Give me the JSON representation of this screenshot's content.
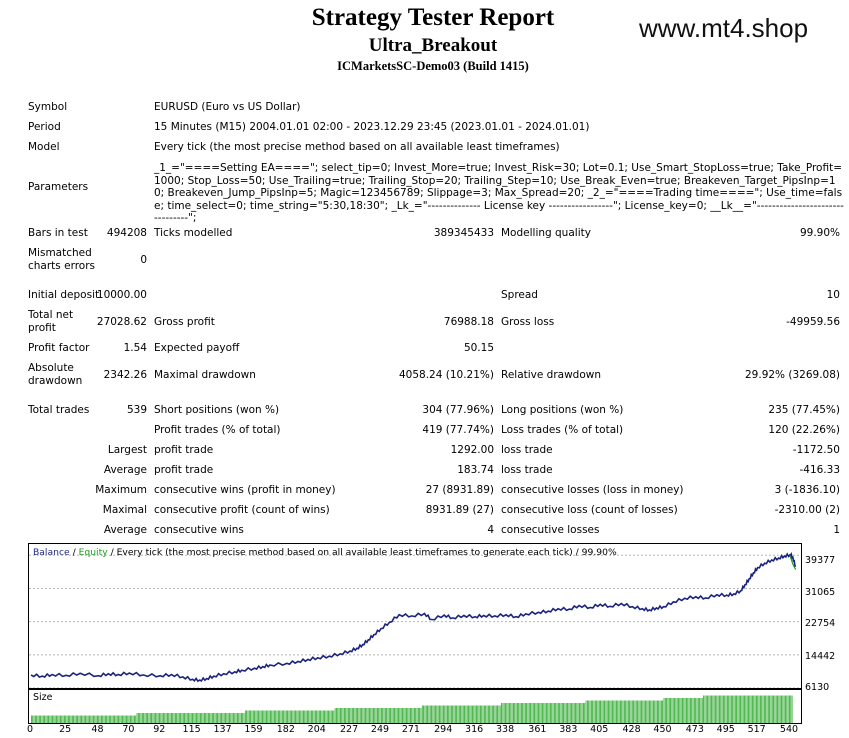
{
  "header": {
    "title": "Strategy Tester Report",
    "ea_name": "Ultra_Breakout",
    "broker": "ICMarketsSC-Demo03 (Build 1415)",
    "website": "www.mt4.shop"
  },
  "info": {
    "symbol_label": "Symbol",
    "symbol_value": "EURUSD (Euro vs US Dollar)",
    "period_label": "Period",
    "period_value": "15 Minutes (M15) 2004.01.01 02:00 - 2023.12.29 23:45 (2023.01.01 - 2024.01.01)",
    "model_label": "Model",
    "model_value": "Every tick (the most precise method based on all available least timeframes)",
    "parameters_label": "Parameters",
    "parameters_value": "_1_=\"====Setting EA====\"; select_tip=0; Invest_More=true; Invest_Risk=30; Lot=0.1; Use_Smart_StopLoss=true; Take_Profit=1000; Stop_Loss=50; Use_Trailing=true; Trailing_Stop=20; Trailing_Step=10; Use_Break_Even=true; Breakeven_Target_PipsInp=10; Breakeven_Jump_PipsInp=5; Magic=123456789; Slippage=3; Max_Spread=20; _2_=\"====Trading time====\"; Use_time=false; time_select=0; time_string=\"5:30,18:30\"; _Lk_=\"-------------- License key -----------------\"; License_key=0; __Lk__=\"--------------------------------\";"
  },
  "stats": {
    "bars_label": "Bars in test",
    "bars_value": "494208",
    "ticks_label": "Ticks modelled",
    "ticks_value": "389345433",
    "quality_label": "Modelling quality",
    "quality_value": "99.90%",
    "mismatch_label_1": "Mismatched",
    "mismatch_label_2": "charts errors",
    "mismatch_value": "0",
    "deposit_label": "Initial deposit",
    "deposit_value": "10000.00",
    "spread_label": "Spread",
    "spread_value": "10",
    "net_label_1": "Total net",
    "net_label_2": "profit",
    "net_value": "27028.62",
    "gross_profit_label": "Gross profit",
    "gross_profit_value": "76988.18",
    "gross_loss_label": "Gross loss",
    "gross_loss_value": "-49959.56",
    "pf_label": "Profit factor",
    "pf_value": "1.54",
    "ep_label": "Expected payoff",
    "ep_value": "50.15",
    "abs_dd_label_1": "Absolute",
    "abs_dd_label_2": "drawdown",
    "abs_dd_value": "2342.26",
    "max_dd_label": "Maximal drawdown",
    "max_dd_value": "4058.24 (10.21%)",
    "rel_dd_label": "Relative drawdown",
    "rel_dd_value": "29.92% (3269.08)",
    "trades_label": "Total trades",
    "trades_value": "539",
    "short_label": "Short positions (won %)",
    "short_value": "304 (77.96%)",
    "long_label": "Long positions (won %)",
    "long_value": "235 (77.45%)",
    "profit_trades_label": "Profit trades (% of total)",
    "profit_trades_value": "419 (77.74%)",
    "loss_trades_label": "Loss trades (% of total)",
    "loss_trades_value": "120 (22.26%)",
    "largest_label": "Largest",
    "largest_profit_label": "profit trade",
    "largest_profit_value": "1292.00",
    "largest_loss_label": "loss trade",
    "largest_loss_value": "-1172.50",
    "average_label": "Average",
    "average_profit_label": "profit trade",
    "average_profit_value": "183.74",
    "average_loss_label": "loss trade",
    "average_loss_value": "-416.33",
    "maximum_label": "Maximum",
    "max_cw_label": "consecutive wins (profit in money)",
    "max_cw_value": "27 (8931.89)",
    "max_cl_label": "consecutive losses (loss in money)",
    "max_cl_value": "3 (-1836.10)",
    "maximal_label": "Maximal",
    "maximal_cp_label": "consecutive profit (count of wins)",
    "maximal_cp_value": "8931.89 (27)",
    "maximal_cl_label": "consecutive loss (count of losses)",
    "maximal_cl_value": "-2310.00 (2)",
    "average2_label": "Average",
    "avg_cw_label": "consecutive wins",
    "avg_cw_value": "4",
    "avg_cl_label": "consecutive losses",
    "avg_cl_value": "1"
  },
  "chart_data": {
    "type": "line",
    "legend": {
      "balance": "Balance",
      "sep": " / ",
      "equity": "Equity",
      "rest": " / Every tick (the most precise method based on all available least timeframes to generate each tick) / 99.90%"
    },
    "x_ticks": [
      0,
      25,
      48,
      70,
      92,
      115,
      137,
      159,
      182,
      204,
      227,
      249,
      271,
      294,
      316,
      338,
      361,
      383,
      405,
      428,
      450,
      473,
      495,
      517,
      540
    ],
    "y_ticks": [
      39377,
      31065,
      22754,
      14442,
      6130
    ],
    "xlim": [
      0,
      545
    ],
    "ylim": [
      6130,
      41200
    ],
    "series": [
      {
        "name": "Balance",
        "x": [
          0,
          8,
          15,
          25,
          35,
          48,
          55,
          62,
          70,
          80,
          92,
          100,
          108,
          115,
          120,
          125,
          130,
          137,
          145,
          150,
          159,
          165,
          170,
          182,
          190,
          197,
          204,
          212,
          220,
          227,
          232,
          236,
          240,
          244,
          249,
          255,
          262,
          271,
          280,
          285,
          294,
          300,
          308,
          316,
          322,
          330,
          338,
          345,
          352,
          361,
          368,
          375,
          383,
          390,
          398,
          405,
          412,
          420,
          428,
          435,
          440,
          445,
          450,
          457,
          465,
          473,
          480,
          488,
          495,
          500,
          505,
          508,
          511,
          514,
          517,
          522,
          527,
          532,
          536,
          540,
          542,
          544
        ],
        "values": [
          9400,
          9100,
          9500,
          9300,
          9800,
          9200,
          9700,
          9500,
          9900,
          9400,
          9200,
          9500,
          8900,
          8300,
          8100,
          8500,
          9100,
          9700,
          10200,
          10600,
          11100,
          11500,
          11900,
          12300,
          12800,
          13300,
          13700,
          14100,
          14700,
          15400,
          16100,
          17000,
          18200,
          19500,
          21000,
          22600,
          24500,
          24200,
          24800,
          23300,
          24400,
          23700,
          24300,
          24000,
          24300,
          24200,
          24500,
          24000,
          24700,
          25100,
          25400,
          26000,
          25900,
          26800,
          26300,
          27100,
          26600,
          27300,
          26500,
          26000,
          25700,
          26200,
          26500,
          27700,
          28600,
          29000,
          28700,
          29500,
          29400,
          29700,
          30500,
          32000,
          33500,
          35000,
          36300,
          37400,
          38200,
          38700,
          39200,
          39500,
          38900,
          36500
        ]
      },
      {
        "name": "Equity",
        "x": [
          540,
          542,
          544
        ],
        "values": [
          39300,
          37200,
          35800
        ]
      }
    ],
    "volume": {
      "label": "Size",
      "x_start": 2,
      "x_step": 3.35,
      "values": [
        3,
        3,
        3,
        3,
        3,
        3,
        3,
        3,
        3,
        3,
        3,
        3,
        3,
        3,
        3,
        3,
        3,
        3,
        3,
        3,
        3,
        3,
        3,
        3,
        3,
        3,
        3,
        3,
        3,
        3,
        3,
        3,
        3,
        3,
        3,
        3,
        3,
        3,
        3,
        3,
        3,
        3,
        3,
        3,
        3,
        3,
        3,
        3,
        3,
        3,
        3,
        3,
        3,
        3,
        3,
        3,
        3,
        3,
        3,
        3,
        3,
        3,
        3,
        3,
        3,
        3,
        3,
        3,
        3,
        3,
        3,
        3,
        3,
        3,
        3,
        3,
        3,
        3,
        3,
        3,
        4,
        4,
        4,
        4,
        4,
        4,
        4,
        4,
        4,
        4,
        4,
        4,
        4,
        4,
        4,
        4,
        4,
        4,
        4,
        4,
        4,
        4,
        4,
        4,
        4,
        4,
        4,
        4,
        4,
        4,
        4,
        4,
        4,
        4,
        4,
        4,
        4,
        4,
        4,
        4,
        4,
        4,
        4,
        4,
        4,
        4,
        4,
        4,
        4,
        4,
        4,
        4,
        4,
        4,
        4,
        4,
        4,
        4,
        4,
        4,
        4,
        4,
        4,
        4,
        4,
        4,
        4,
        4,
        4,
        4,
        4,
        4,
        4,
        4,
        4,
        4,
        4,
        4,
        4,
        4,
        4,
        4,
        5,
        5,
        5,
        5,
        5,
        5,
        5,
        5,
        5,
        5,
        5,
        5,
        5,
        5,
        5,
        5,
        5,
        5,
        5,
        5,
        5,
        5,
        5,
        5,
        5,
        5,
        5,
        5,
        5,
        5,
        5,
        5,
        5,
        5,
        5,
        5,
        5,
        5,
        5,
        5,
        5,
        5,
        5,
        5,
        5,
        5,
        5,
        5,
        5,
        5,
        5,
        5,
        5,
        5,
        5,
        5,
        5,
        5,
        5,
        5,
        5,
        5,
        5,
        5,
        5,
        5,
        5,
        5,
        6,
        6,
        6,
        6,
        6,
        6,
        6,
        6,
        6,
        6,
        6,
        6,
        6,
        6,
        6,
        6,
        6,
        6,
        6,
        6,
        6,
        6,
        6,
        6,
        6,
        6,
        6,
        6,
        6,
        6,
        6,
        6,
        6,
        6,
        6,
        6,
        6,
        6,
        6,
        6,
        6,
        6,
        6,
        6,
        6,
        6,
        6,
        6,
        6,
        6,
        6,
        6,
        6,
        6,
        6,
        6,
        6,
        6,
        6,
        6,
        6,
        6,
        6,
        6,
        6,
        6,
        7,
        7,
        7,
        7,
        7,
        7,
        7,
        7,
        7,
        7,
        7,
        7,
        7,
        7,
        7,
        7,
        7,
        7,
        7,
        7,
        7,
        7,
        7,
        7,
        7,
        7,
        7,
        7,
        7,
        7,
        7,
        7,
        7,
        7,
        7,
        7,
        7,
        7,
        7,
        7,
        7,
        7,
        7,
        7,
        7,
        7,
        7,
        7,
        7,
        7,
        7,
        7,
        7,
        7,
        7,
        7,
        7,
        7,
        7,
        7,
        8,
        8,
        8,
        8,
        8,
        8,
        8,
        8,
        8,
        8,
        8,
        8,
        8,
        8,
        8,
        8,
        8,
        8,
        8,
        8,
        8,
        8,
        8,
        8,
        8,
        8,
        8,
        8,
        8,
        8,
        8,
        8,
        8,
        8,
        8,
        8,
        8,
        8,
        8,
        8,
        8,
        8,
        8,
        8,
        8,
        8,
        8,
        8,
        8,
        8,
        8,
        8,
        8,
        8,
        8,
        8,
        8,
        8,
        8,
        8,
        8,
        8,
        8,
        8,
        9,
        9,
        9,
        9,
        9,
        9,
        9,
        9,
        9,
        9,
        9,
        9,
        9,
        9,
        9,
        9,
        9,
        9,
        9,
        9,
        9,
        9,
        9,
        9,
        9,
        9,
        9,
        9,
        9,
        9,
        9,
        9,
        9,
        9,
        9,
        9,
        9,
        9,
        9,
        9,
        9,
        9,
        9,
        9,
        9,
        9,
        9,
        9,
        9,
        9,
        9,
        9,
        9,
        9,
        9,
        9,
        9,
        9,
        9,
        10,
        10,
        10,
        10,
        10,
        10,
        10,
        10,
        10,
        10,
        10,
        10,
        10,
        10,
        10,
        10,
        10,
        10,
        10,
        10,
        10,
        10,
        10,
        10,
        10,
        10,
        10,
        10,
        10,
        10,
        11,
        11,
        11,
        11,
        11,
        11,
        11,
        11,
        11,
        11,
        11,
        11,
        11,
        11,
        11,
        11,
        11,
        11,
        11,
        11,
        11,
        11,
        11,
        11,
        11,
        11,
        11,
        11,
        11,
        11,
        11,
        11,
        11,
        11,
        11,
        11,
        11,
        11,
        11,
        11,
        11,
        11,
        11,
        11,
        11,
        11,
        11,
        11,
        11,
        11,
        11,
        11,
        11,
        11,
        11,
        11,
        11,
        11,
        11,
        11,
        11,
        11,
        11,
        11,
        11,
        11,
        11,
        11
      ],
      "vmax": 12
    }
  }
}
